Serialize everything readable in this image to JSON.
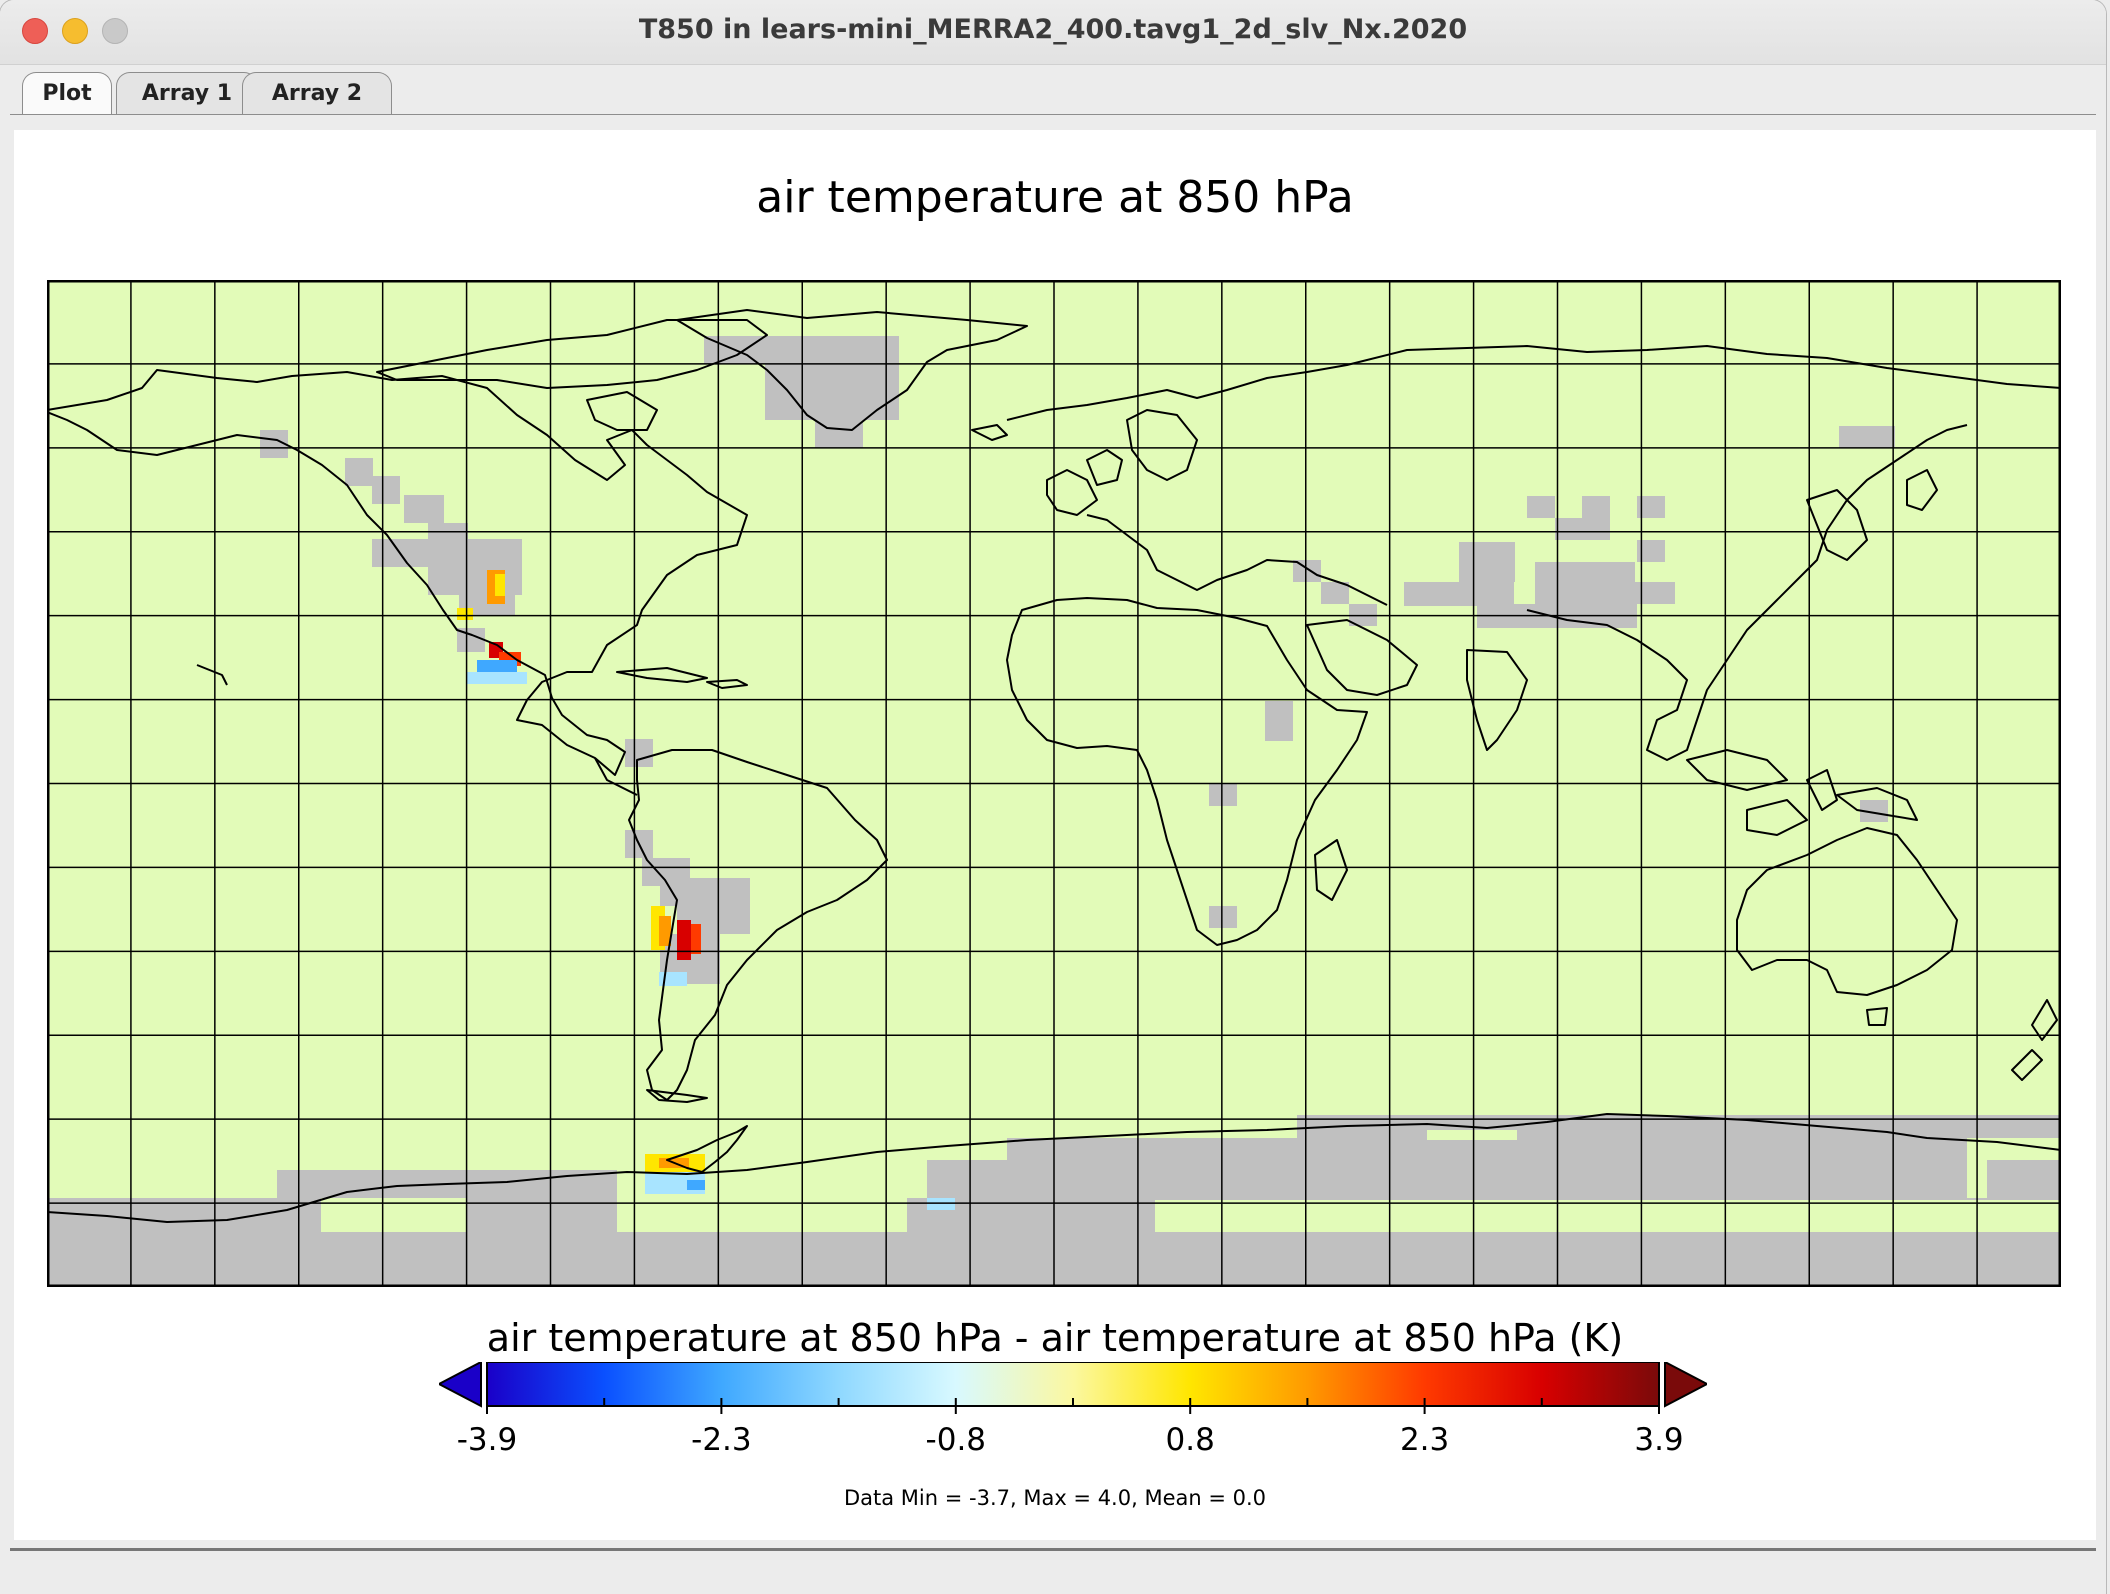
{
  "window": {
    "title": "T850 in lears-mini_MERRA2_400.tavg1_2d_slv_Nx.2020"
  },
  "tabs": [
    {
      "label": "Plot",
      "active": true
    },
    {
      "label": "Array 1",
      "active": false
    },
    {
      "label": "Array 2",
      "active": false
    }
  ],
  "plot": {
    "title": "air temperature at 850 hPa",
    "colorbar_title": "air temperature at 850 hPa - air temperature at 850 hPa (K)",
    "colorbar_ticks": [
      "-3.9",
      "-2.3",
      "-0.8",
      "0.8",
      "2.3",
      "3.9"
    ],
    "stats": "Data Min = -3.7, Max = 4.0, Mean = 0.0",
    "colors": {
      "background": "#e2fbb8",
      "missing": "#c0c0c0",
      "coastline": "#000000"
    },
    "colorbar_colors": [
      "#1a00c8",
      "#0a50ff",
      "#3fa8ff",
      "#8fd8ff",
      "#d8f9ff",
      "#fbf8a0",
      "#ffe600",
      "#ff9a00",
      "#ff3a00",
      "#d80000",
      "#7a0a0a"
    ],
    "colorbar_range": [
      -3.9,
      3.9
    ]
  }
}
